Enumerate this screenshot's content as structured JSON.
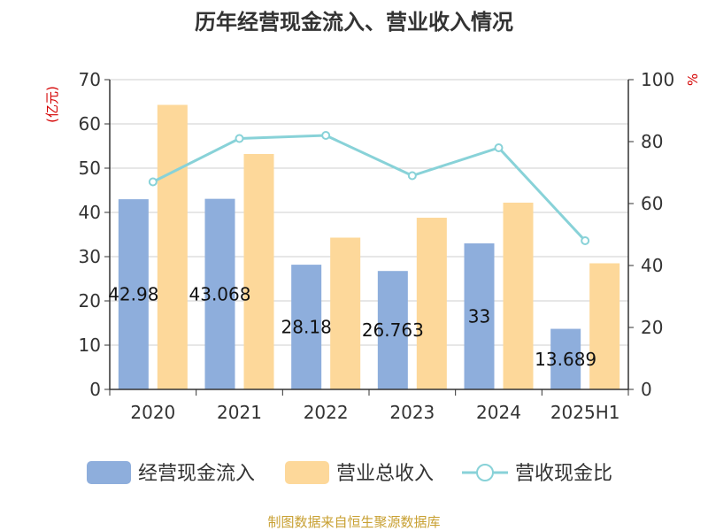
{
  "chart_data": {
    "type": "bar",
    "title": "历年经营现金流入、营业收入情况",
    "categories": [
      "2020",
      "2021",
      "2022",
      "2023",
      "2024",
      "2025H1"
    ],
    "series": [
      {
        "name": "经营现金流入",
        "type": "bar",
        "axis": "left",
        "color": "#8eaedc",
        "values": [
          42.98,
          43.07,
          28.18,
          26.76,
          33.0,
          13.69
        ],
        "labels": [
          "42.98",
          "43.068",
          "28.18",
          "26.763",
          "33",
          "13.689"
        ]
      },
      {
        "name": "营业总收入",
        "type": "bar",
        "axis": "left",
        "color": "#fdd89a",
        "values": [
          64.3,
          53.2,
          34.3,
          38.8,
          42.2,
          28.5
        ]
      },
      {
        "name": "营收现金比",
        "type": "line",
        "axis": "right",
        "color": "#88d2d8",
        "values": [
          67,
          81,
          82,
          69,
          78,
          48
        ]
      }
    ],
    "y_left": {
      "unit": "(亿元)",
      "min": 0,
      "max": 70,
      "ticks": [
        "0",
        "10",
        "20",
        "30",
        "40",
        "50",
        "60",
        "70"
      ]
    },
    "y_right": {
      "unit": "%",
      "min": 0,
      "max": 100,
      "ticks": [
        "0",
        "20",
        "40",
        "60",
        "80",
        "100"
      ]
    },
    "grid": true,
    "legend_position": "bottom"
  },
  "source": "制图数据来自恒生聚源数据库"
}
